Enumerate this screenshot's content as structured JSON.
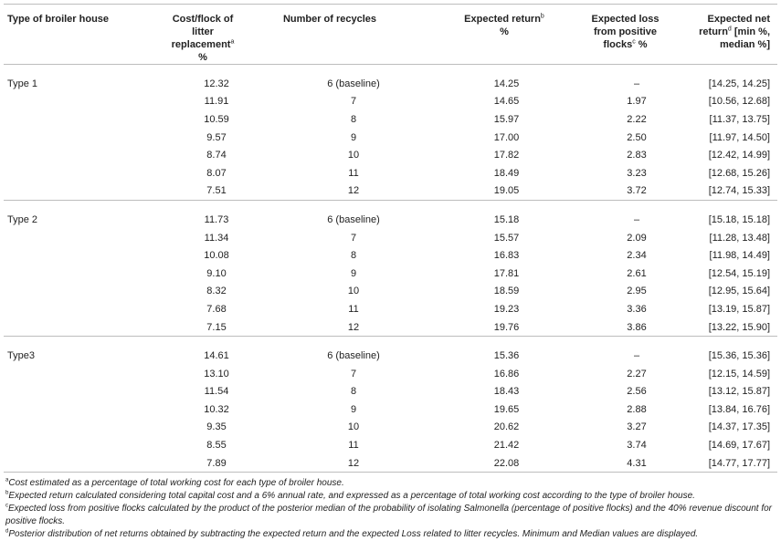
{
  "headers": {
    "type": "Type of broiler house",
    "cost": "Cost/flock of litter replacement",
    "cost_sup": "a",
    "cost_suffix": " %",
    "recycles": "Number of recycles",
    "return": "Expected return",
    "return_sup": "b",
    "return_suffix": " %",
    "loss": "Expected loss from positive flocks",
    "loss_sup": "c",
    "loss_suffix": " %",
    "net": "Expected net return",
    "net_sup": "d",
    "net_suffix": " [min %, median %]"
  },
  "groups": [
    {
      "name": "Type 1",
      "rows": [
        [
          "12.32",
          "6 (baseline)",
          "14.25",
          "–",
          "[14.25, 14.25]"
        ],
        [
          "11.91",
          "7",
          "14.65",
          "1.97",
          "[10.56, 12.68]"
        ],
        [
          "10.59",
          "8",
          "15.97",
          "2.22",
          "[11.37, 13.75]"
        ],
        [
          "9.57",
          "9",
          "17.00",
          "2.50",
          "[11.97, 14.50]"
        ],
        [
          "8.74",
          "10",
          "17.82",
          "2.83",
          "[12.42, 14.99]"
        ],
        [
          "8.07",
          "11",
          "18.49",
          "3.23",
          "[12.68, 15.26]"
        ],
        [
          "7.51",
          "12",
          "19.05",
          "3.72",
          "[12.74, 15.33]"
        ]
      ]
    },
    {
      "name": "Type 2",
      "rows": [
        [
          "11.73",
          "6 (baseline)",
          "15.18",
          "–",
          "[15.18, 15.18]"
        ],
        [
          "11.34",
          "7",
          "15.57",
          "2.09",
          "[11.28, 13.48]"
        ],
        [
          "10.08",
          "8",
          "16.83",
          "2.34",
          "[11.98, 14.49]"
        ],
        [
          "9.10",
          "9",
          "17.81",
          "2.61",
          "[12.54, 15.19]"
        ],
        [
          "8.32",
          "10",
          "18.59",
          "2.95",
          "[12.95, 15.64]"
        ],
        [
          "7.68",
          "11",
          "19.23",
          "3.36",
          "[13.19, 15.87]"
        ],
        [
          "7.15",
          "12",
          "19.76",
          "3.86",
          "[13.22, 15.90]"
        ]
      ]
    },
    {
      "name": "Type3",
      "rows": [
        [
          "14.61",
          "6 (baseline)",
          "15.36",
          "–",
          "[15.36, 15.36]"
        ],
        [
          "13.10",
          "7",
          "16.86",
          "2.27",
          "[12.15, 14.59]"
        ],
        [
          "11.54",
          "8",
          "18.43",
          "2.56",
          "[13.12, 15.87]"
        ],
        [
          "10.32",
          "9",
          "19.65",
          "2.88",
          "[13.84, 16.76]"
        ],
        [
          "9.35",
          "10",
          "20.62",
          "3.27",
          "[14.37, 17.35]"
        ],
        [
          "8.55",
          "11",
          "21.42",
          "3.74",
          "[14.69, 17.67]"
        ],
        [
          "7.89",
          "12",
          "22.08",
          "4.31",
          "[14.77, 17.77]"
        ]
      ]
    }
  ],
  "footnotes": [
    {
      "mark": "a",
      "text": "Cost estimated as a percentage of total working cost for each type of broiler house."
    },
    {
      "mark": "b",
      "text": "Expected return calculated considering total capital cost and a 6% annual rate, and expressed as a percentage of total working cost according to the type of broiler house."
    },
    {
      "mark": "c",
      "text": "Expected loss from positive flocks calculated by the product of the posterior median of the probability of isolating Salmonella (percentage of positive flocks) and the 40% revenue discount for positive flocks."
    },
    {
      "mark": "d",
      "text": "Posterior distribution of net returns obtained by subtracting the expected return and the expected Loss related to litter recycles. Minimum and Median values are displayed."
    }
  ]
}
